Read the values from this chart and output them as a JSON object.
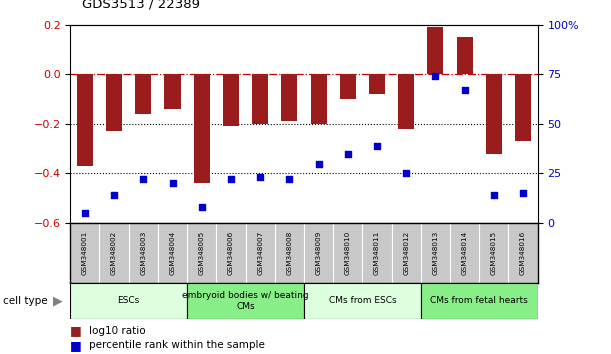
{
  "title": "GDS3513 / 22389",
  "samples": [
    "GSM348001",
    "GSM348002",
    "GSM348003",
    "GSM348004",
    "GSM348005",
    "GSM348006",
    "GSM348007",
    "GSM348008",
    "GSM348009",
    "GSM348010",
    "GSM348011",
    "GSM348012",
    "GSM348013",
    "GSM348014",
    "GSM348015",
    "GSM348016"
  ],
  "log10_ratio": [
    -0.37,
    -0.23,
    -0.16,
    -0.14,
    -0.44,
    -0.21,
    -0.2,
    -0.19,
    -0.2,
    -0.1,
    -0.08,
    -0.22,
    0.19,
    0.15,
    -0.32,
    -0.27
  ],
  "percentile_rank": [
    5,
    14,
    22,
    20,
    8,
    22,
    23,
    22,
    30,
    35,
    39,
    25,
    74,
    67,
    14,
    15
  ],
  "bar_color": "#9B1C1C",
  "dot_color": "#0000CC",
  "ylim_left": [
    -0.6,
    0.2
  ],
  "ylim_right": [
    0,
    100
  ],
  "yticks_left": [
    -0.6,
    -0.4,
    -0.2,
    0.0,
    0.2
  ],
  "yticks_right": [
    0,
    25,
    50,
    75,
    100
  ],
  "ytick_labels_right": [
    "0",
    "25",
    "50",
    "75",
    "100%"
  ],
  "hline_zero_color": "#CC0000",
  "hline_dotted_values": [
    -0.2,
    -0.4
  ],
  "cell_type_groups": [
    {
      "label": "ESCs",
      "start": 0,
      "end": 3,
      "color": "#DDFFDD"
    },
    {
      "label": "embryoid bodies w/ beating\nCMs",
      "start": 4,
      "end": 7,
      "color": "#88EE88"
    },
    {
      "label": "CMs from ESCs",
      "start": 8,
      "end": 11,
      "color": "#DDFFDD"
    },
    {
      "label": "CMs from fetal hearts",
      "start": 12,
      "end": 15,
      "color": "#88EE88"
    }
  ],
  "legend_items": [
    {
      "label": "log10 ratio",
      "color": "#9B1C1C"
    },
    {
      "label": "percentile rank within the sample",
      "color": "#0000CC"
    }
  ],
  "cell_type_label": "cell type",
  "background_color": "#FFFFFF",
  "plot_bg_color": "#FFFFFF",
  "sample_bg_color": "#C8C8C8"
}
